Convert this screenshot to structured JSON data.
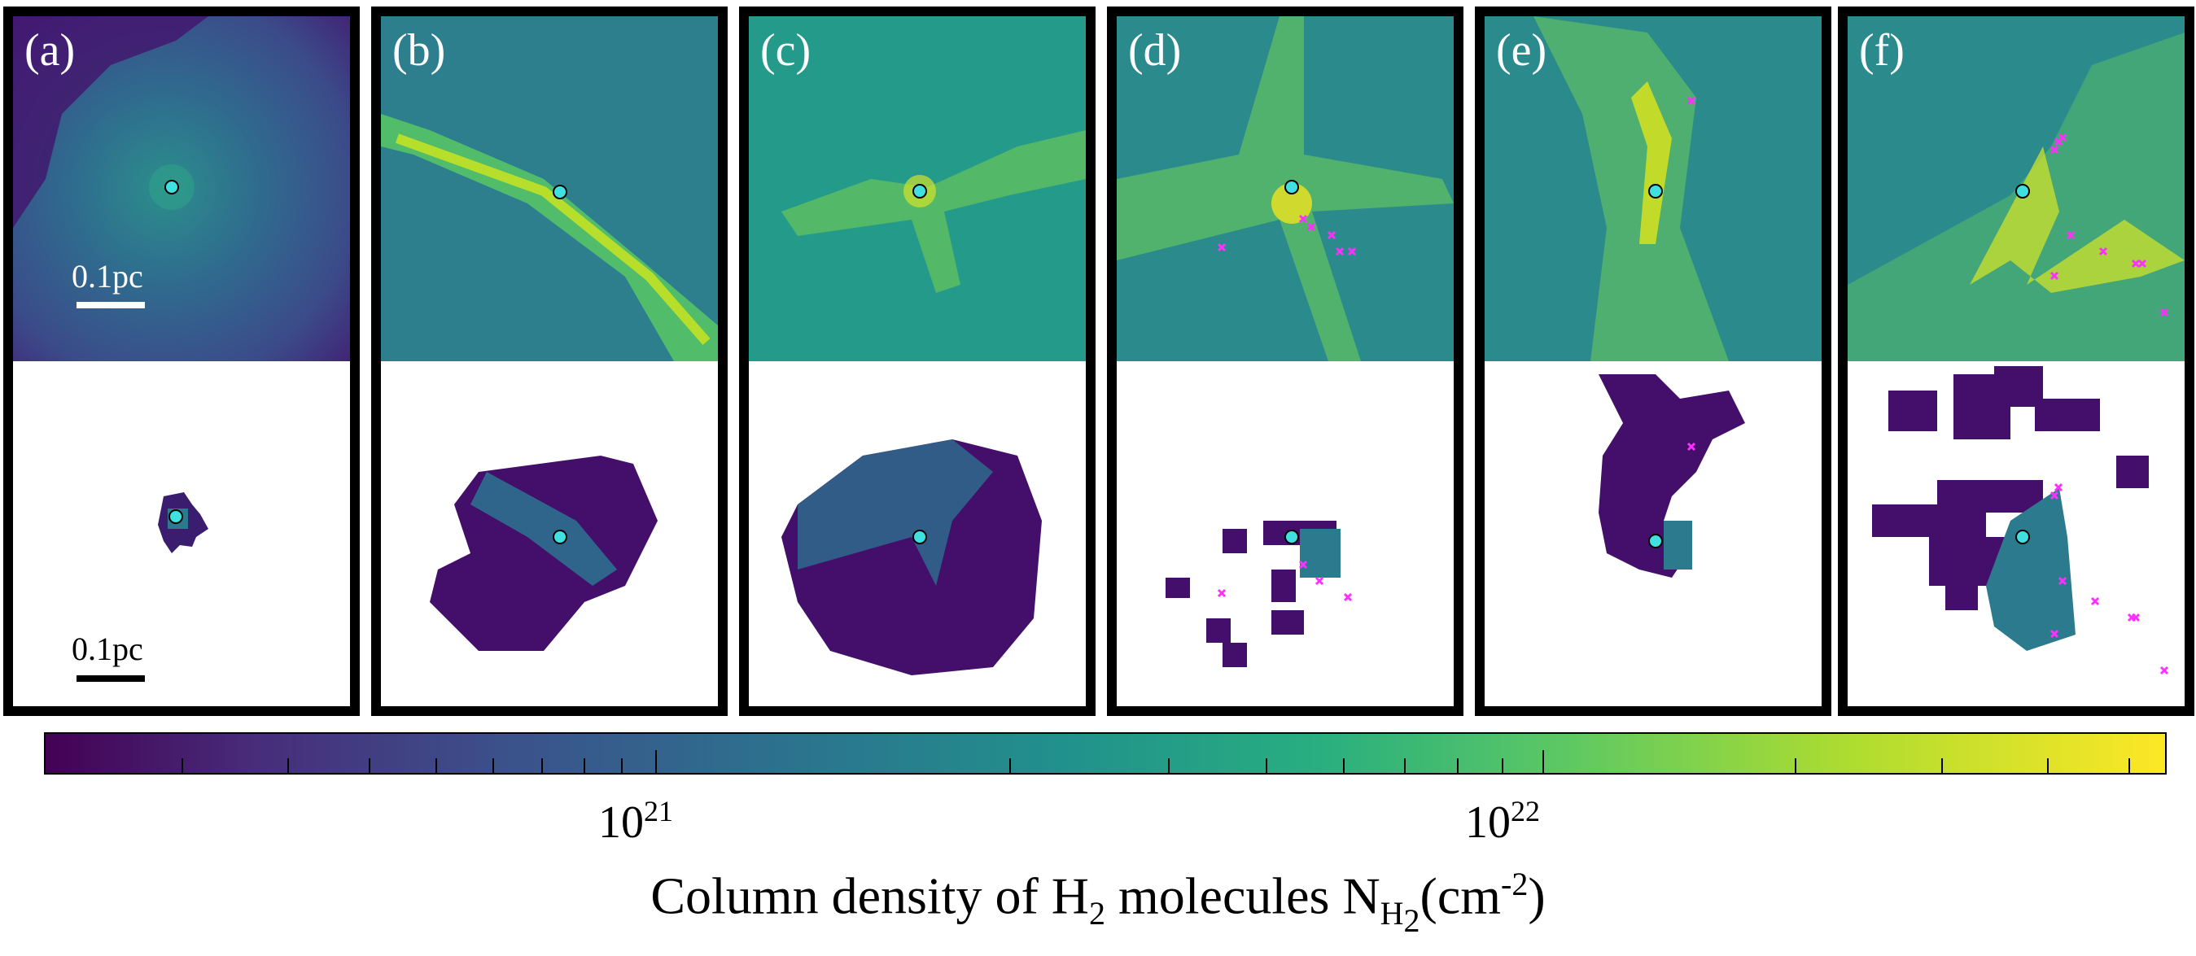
{
  "panels": [
    {
      "label": "(a)",
      "scale_top": "0.1pc",
      "scale_bottom": "0.1pc"
    },
    {
      "label": "(b)"
    },
    {
      "label": "(c)"
    },
    {
      "label": "(d)"
    },
    {
      "label": "(e)"
    },
    {
      "label": "(f)"
    }
  ],
  "colorbar": {
    "colormap": "viridis",
    "scale": "log",
    "tick_major_labels": [
      {
        "base": "10",
        "exp": "21"
      },
      {
        "base": "10",
        "exp": "22"
      }
    ],
    "title_prefix": "Column density of H",
    "title_sub1": "2",
    "title_middle": " molecules N",
    "title_sub2": "H",
    "title_sub3": "2",
    "title_unit_open": "(cm",
    "title_unit_exp": "-2",
    "title_unit_close": ")"
  },
  "colors": {
    "frame": "#000000",
    "sink_marker": "#40e0e0",
    "star_marker": "#ff30ff"
  },
  "icons": {
    "sink": "circle-marker",
    "star": "cross-marker"
  }
}
